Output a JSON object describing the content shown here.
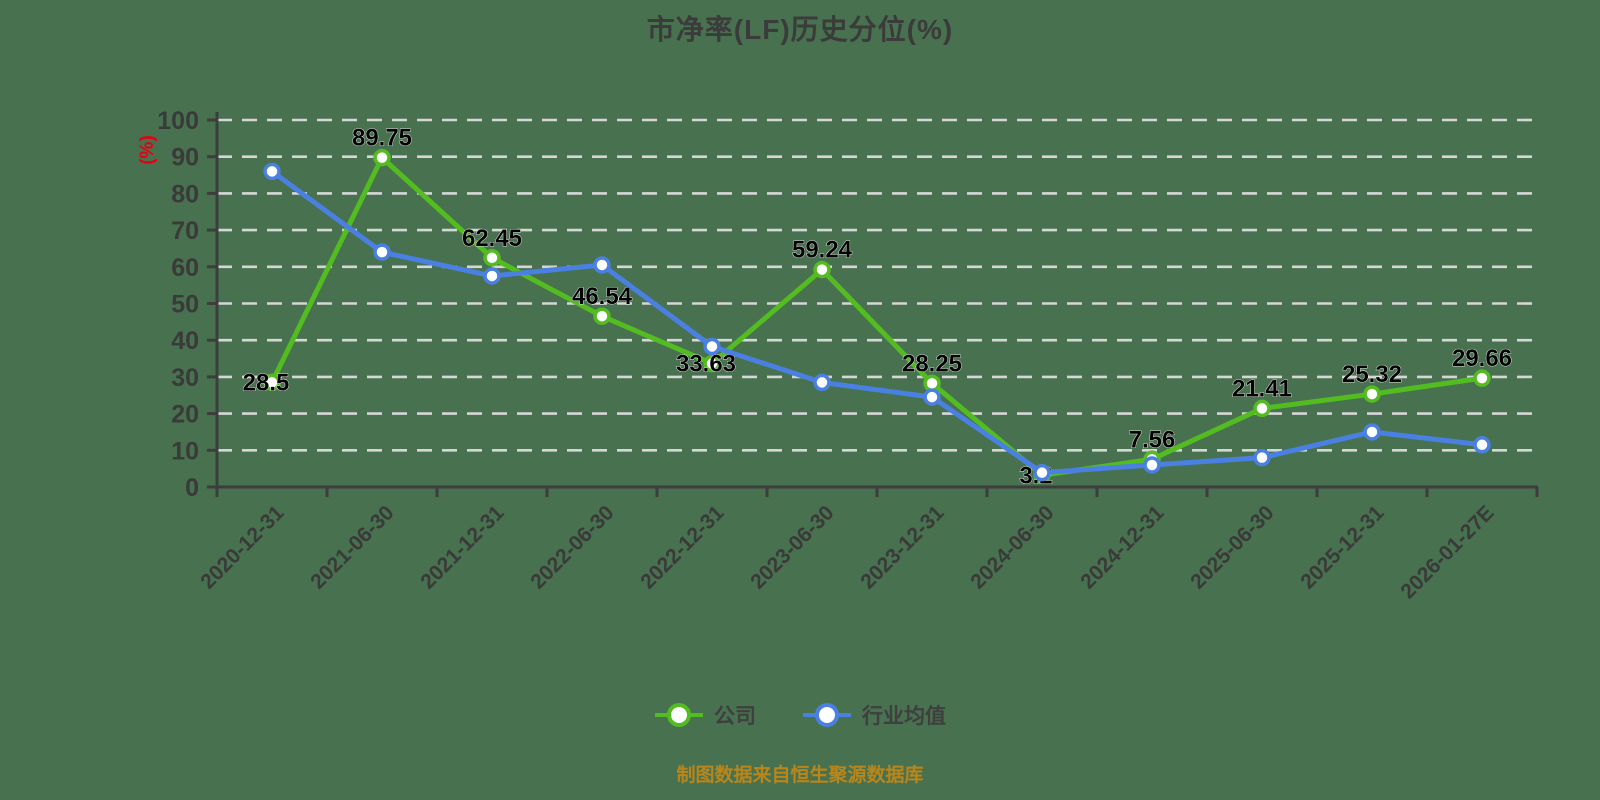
{
  "title": "市净率(LF)历史分位(%)",
  "y_axis_name": "(%)",
  "footer": "制图数据来自恒生聚源数据库",
  "colors": {
    "background": "#48714f",
    "grid": "#d6d6d6",
    "axis": "#3d3d3d",
    "tick_text": "#3a3a3a",
    "data_label": "#000000",
    "company": "#53bc21",
    "industry": "#4a80e1",
    "axis_name": "#e60012",
    "footer": "#b9861b"
  },
  "legend": {
    "items": [
      {
        "label": "公司"
      },
      {
        "label": "行业均值"
      }
    ]
  },
  "chart_data": {
    "type": "line",
    "title": "市净率(LF)历史分位(%)",
    "categories": [
      "2020-12-31",
      "2021-06-30",
      "2021-12-31",
      "2022-06-30",
      "2022-12-31",
      "2023-06-30",
      "2023-12-31",
      "2024-06-30",
      "2024-12-31",
      "2025-06-30",
      "2025-12-31",
      "2026-01-27E"
    ],
    "series": [
      {
        "name": "公司",
        "color_key": "company",
        "values": [
          28.5,
          89.75,
          62.45,
          46.54,
          33.63,
          59.24,
          28.25,
          3.2,
          7.56,
          21.41,
          25.32,
          29.66
        ],
        "data_labels": true
      },
      {
        "name": "行业均值",
        "color_key": "industry",
        "values": [
          86,
          64,
          57.5,
          60.5,
          38.3,
          28.5,
          24.5,
          3.9,
          6,
          8,
          15,
          11.5
        ],
        "data_labels": false
      }
    ],
    "xlabel": "",
    "ylabel": "(%)",
    "ylim": [
      0,
      100
    ],
    "y_ticks": [
      0,
      10,
      20,
      30,
      40,
      50,
      60,
      70,
      80,
      90,
      100
    ],
    "grid": "horizontal-dashed",
    "legend_position": "bottom"
  }
}
